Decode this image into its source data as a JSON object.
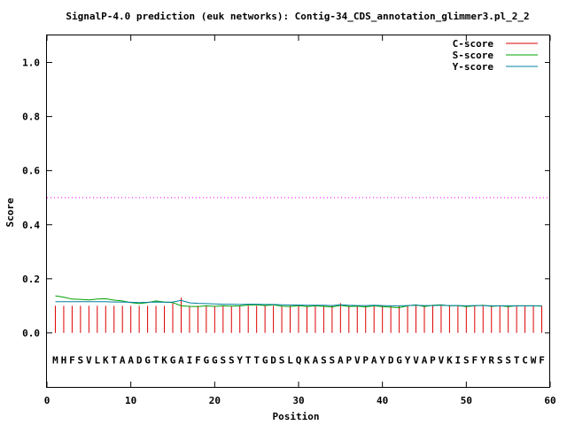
{
  "chart_data": {
    "type": "line",
    "title": "SignalP-4.0 prediction (euk networks): Contig-34_CDS_annotation_glimmer3.pl_2_2",
    "xlabel": "Position",
    "ylabel": "Score",
    "xlim": [
      0,
      60
    ],
    "ylim": [
      -0.2,
      1.1
    ],
    "xticks": [
      0,
      10,
      20,
      30,
      40,
      50,
      60
    ],
    "yticks": [
      0.0,
      0.2,
      0.4,
      0.6,
      0.8,
      1.0
    ],
    "xtick_labels": [
      "0",
      "10",
      "20",
      "30",
      "40",
      "50",
      "60"
    ],
    "ytick_labels": [
      "0.0",
      "0.2",
      "0.4",
      "0.6",
      "0.8",
      "1.0"
    ],
    "grid": false,
    "legend_position": "top-right",
    "threshold": {
      "y": 0.5,
      "color": "#ff00ff",
      "style": "dotted"
    },
    "sequence": "MHFSVLKTAADGTKGAIFGGSSYTTGDSLQKASSAPVPAYDGYVAPVKISFYRSSTCWF",
    "sequence_y": -0.1,
    "series": [
      {
        "name": "C-score",
        "kind": "impulse",
        "color": "#dd0000",
        "x": [
          1,
          2,
          3,
          4,
          5,
          6,
          7,
          8,
          9,
          10,
          11,
          12,
          13,
          14,
          15,
          16,
          17,
          18,
          19,
          20,
          21,
          22,
          23,
          24,
          25,
          26,
          27,
          28,
          29,
          30,
          31,
          32,
          33,
          34,
          35,
          36,
          37,
          38,
          39,
          40,
          41,
          42,
          43,
          44,
          45,
          46,
          47,
          48,
          49,
          50,
          51,
          52,
          53,
          54,
          55,
          56,
          57,
          58,
          59
        ],
        "y": [
          0.1,
          0.1,
          0.1,
          0.1,
          0.1,
          0.1,
          0.1,
          0.1,
          0.1,
          0.1,
          0.1,
          0.1,
          0.1,
          0.1,
          0.11,
          0.13,
          0.1,
          0.1,
          0.1,
          0.1,
          0.1,
          0.1,
          0.1,
          0.1,
          0.1,
          0.1,
          0.1,
          0.1,
          0.1,
          0.1,
          0.1,
          0.1,
          0.1,
          0.1,
          0.11,
          0.1,
          0.1,
          0.1,
          0.1,
          0.1,
          0.1,
          0.1,
          0.1,
          0.1,
          0.1,
          0.1,
          0.1,
          0.1,
          0.1,
          0.1,
          0.1,
          0.1,
          0.1,
          0.1,
          0.1,
          0.1,
          0.1,
          0.1,
          0.1
        ]
      },
      {
        "name": "S-score",
        "kind": "line",
        "color": "#00a000",
        "x": [
          1,
          2,
          3,
          4,
          5,
          6,
          7,
          8,
          9,
          10,
          11,
          12,
          13,
          14,
          15,
          16,
          17,
          18,
          19,
          20,
          21,
          22,
          23,
          24,
          25,
          26,
          27,
          28,
          29,
          30,
          31,
          32,
          33,
          34,
          35,
          36,
          37,
          38,
          39,
          40,
          41,
          42,
          43,
          44,
          45,
          46,
          47,
          48,
          49,
          50,
          51,
          52,
          53,
          54,
          55,
          56,
          57,
          58,
          59
        ],
        "y": [
          0.137,
          0.132,
          0.125,
          0.124,
          0.122,
          0.125,
          0.126,
          0.121,
          0.118,
          0.112,
          0.108,
          0.112,
          0.118,
          0.114,
          0.112,
          0.1,
          0.098,
          0.097,
          0.1,
          0.098,
          0.1,
          0.099,
          0.1,
          0.103,
          0.104,
          0.101,
          0.104,
          0.099,
          0.097,
          0.101,
          0.097,
          0.1,
          0.098,
          0.096,
          0.102,
          0.097,
          0.099,
          0.096,
          0.1,
          0.097,
          0.095,
          0.093,
          0.1,
          0.104,
          0.097,
          0.102,
          0.104,
          0.1,
          0.101,
          0.097,
          0.1,
          0.102,
          0.098,
          0.1,
          0.097,
          0.1,
          0.1,
          0.1,
          0.099
        ]
      },
      {
        "name": "Y-score",
        "kind": "line",
        "color": "#0080a0",
        "x": [
          1,
          2,
          3,
          4,
          5,
          6,
          7,
          8,
          9,
          10,
          11,
          12,
          13,
          14,
          15,
          16,
          17,
          18,
          19,
          20,
          21,
          22,
          23,
          24,
          25,
          26,
          27,
          28,
          29,
          30,
          31,
          32,
          33,
          34,
          35,
          36,
          37,
          38,
          39,
          40,
          41,
          42,
          43,
          44,
          45,
          46,
          47,
          48,
          49,
          50,
          51,
          52,
          53,
          54,
          55,
          56,
          57,
          58,
          59
        ],
        "y": [
          0.115,
          0.115,
          0.115,
          0.115,
          0.115,
          0.115,
          0.115,
          0.114,
          0.114,
          0.113,
          0.112,
          0.113,
          0.114,
          0.113,
          0.114,
          0.12,
          0.111,
          0.109,
          0.108,
          0.107,
          0.106,
          0.106,
          0.105,
          0.106,
          0.106,
          0.105,
          0.105,
          0.104,
          0.103,
          0.103,
          0.102,
          0.102,
          0.102,
          0.101,
          0.104,
          0.102,
          0.101,
          0.101,
          0.102,
          0.101,
          0.1,
          0.1,
          0.101,
          0.102,
          0.101,
          0.101,
          0.102,
          0.101,
          0.101,
          0.1,
          0.101,
          0.101,
          0.1,
          0.1,
          0.1,
          0.1,
          0.1,
          0.1,
          0.1
        ]
      }
    ]
  }
}
